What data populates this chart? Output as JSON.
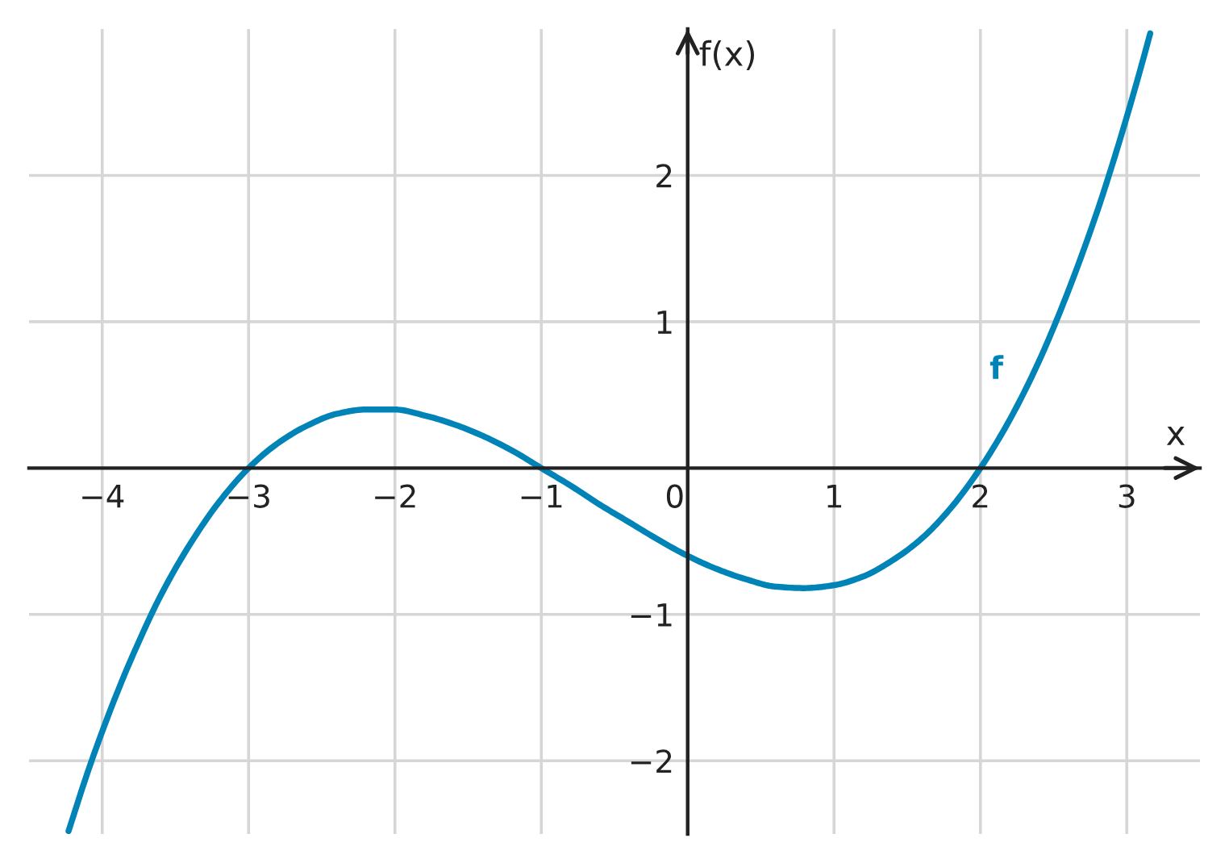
{
  "chart_data": {
    "type": "line",
    "xlabel": "x",
    "ylabel": "f(x)",
    "x": [
      -4.23,
      -4.1,
      -4.0,
      -3.9,
      -3.8,
      -3.6,
      -3.4,
      -3.2,
      -3.0,
      -2.8,
      -2.6,
      -2.4,
      -2.2,
      -2.0,
      -1.8,
      -1.6,
      -1.4,
      -1.2,
      -1.0,
      -0.8,
      -0.6,
      -0.4,
      -0.2,
      0,
      0.2,
      0.4,
      0.6,
      0.8,
      1.0,
      1.2,
      1.4,
      1.6,
      1.8,
      2.0,
      2.2,
      2.4,
      2.6,
      2.8,
      2.9,
      3.0,
      3.1,
      3.16
    ],
    "series": [
      {
        "name": "f",
        "color": "#0083b7",
        "values": [
          -2.48,
          -2.08,
          -1.8,
          -1.54,
          -1.3,
          -0.87,
          -0.52,
          -0.23,
          0,
          0.17,
          0.29,
          0.37,
          0.4,
          0.4,
          0.36,
          0.3,
          0.22,
          0.12,
          0,
          -0.12,
          -0.25,
          -0.37,
          -0.49,
          -0.6,
          -0.69,
          -0.76,
          -0.81,
          -0.82,
          -0.8,
          -0.74,
          -0.63,
          -0.48,
          -0.27,
          0,
          0.33,
          0.73,
          1.21,
          1.76,
          2.07,
          2.4,
          2.75,
          2.97
        ]
      }
    ],
    "xlim": [
      -4.5,
      3.5
    ],
    "ylim": [
      -2.5,
      3
    ],
    "xticks": [
      {
        "value": -4,
        "label": "−4"
      },
      {
        "value": -3,
        "label": "−3"
      },
      {
        "value": -2,
        "label": "−2"
      },
      {
        "value": -1,
        "label": "−1"
      },
      0,
      1,
      2,
      3
    ],
    "yticks": [
      {
        "value": -2,
        "label": "−2"
      },
      {
        "value": -1,
        "label": "−1"
      },
      1,
      2
    ],
    "grid": true,
    "line_style": "solid"
  }
}
